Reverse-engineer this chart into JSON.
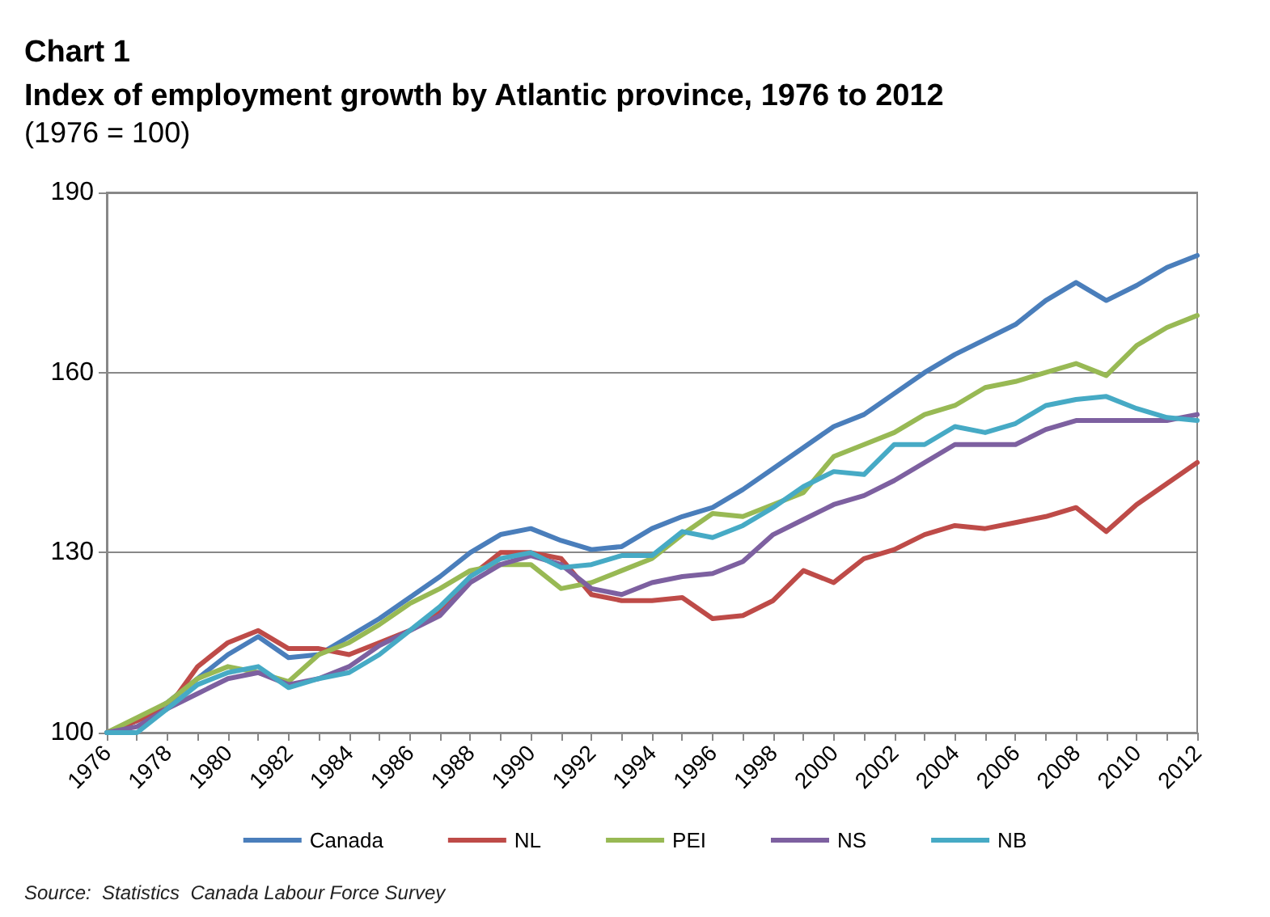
{
  "chart_data": {
    "type": "line",
    "title": "Chart 1\nIndex of employment growth by Atlantic province, 1976 to 2012",
    "subtitle": "(1976 = 100)",
    "annotations": [
      "Source:  Statistics  Canada Labour Force Survey"
    ],
    "categories": [
      "1976",
      null,
      "1978",
      null,
      "1980",
      null,
      "1982",
      null,
      "1984",
      null,
      "1986",
      null,
      "1988",
      null,
      "1990",
      null,
      "1992",
      null,
      "1994",
      null,
      "1996",
      null,
      "1998",
      null,
      "2000",
      null,
      "2002",
      null,
      "2004",
      null,
      "2006",
      null,
      "2008",
      null,
      "2010",
      null,
      "2012"
    ],
    "series": [
      {
        "name": "Canada",
        "color": "#4a7ebb",
        "values": [
          100,
          102,
          105,
          109,
          113,
          116,
          112.5,
          113,
          116,
          119,
          122.5,
          126,
          130,
          133,
          134,
          132,
          130.5,
          131,
          134,
          136,
          137.5,
          140.5,
          144,
          147.5,
          151,
          153,
          156.5,
          160,
          163,
          165.5,
          168,
          172,
          175,
          172,
          174.5,
          177.5,
          179.5
        ]
      },
      {
        "name": "NL",
        "color": "#be4b48",
        "values": [
          100,
          102,
          104,
          111,
          115,
          117,
          114,
          114,
          113,
          115,
          117,
          120,
          126,
          130,
          130,
          129,
          123,
          122,
          122,
          122.5,
          119,
          119.5,
          122,
          127,
          125,
          129,
          130.5,
          133,
          134.5,
          134,
          135,
          136,
          137.5,
          133.5,
          138,
          141.5,
          145
        ]
      },
      {
        "name": "PEI",
        "color": "#98b954",
        "values": [
          100,
          102.5,
          105,
          109,
          111,
          110,
          108.5,
          113,
          115,
          118,
          121.5,
          124,
          127,
          128,
          128,
          124,
          125,
          127,
          129,
          133,
          136.5,
          136,
          138,
          140,
          146,
          148,
          150,
          153,
          154.5,
          157.5,
          158.5,
          160,
          161.5,
          159.5,
          164.5,
          167.5,
          169.5
        ]
      },
      {
        "name": "NS",
        "color": "#7d60a0",
        "values": [
          100,
          101,
          104,
          106.5,
          109,
          110,
          108,
          109,
          111,
          114.5,
          117,
          119.5,
          125,
          128,
          129.5,
          128,
          124,
          123,
          125,
          126,
          126.5,
          128.5,
          133,
          135.5,
          138,
          139.5,
          142,
          145,
          148,
          148,
          148,
          150.5,
          152,
          152,
          152,
          152,
          153
        ]
      },
      {
        "name": "NB",
        "color": "#46aac5",
        "values": [
          100,
          100,
          104,
          108,
          110,
          111,
          107.5,
          109,
          110,
          113,
          117,
          121,
          126,
          129,
          130,
          127.5,
          128,
          129.5,
          129.5,
          133.5,
          132.5,
          134.5,
          137.5,
          141,
          143.5,
          143,
          148,
          148,
          151,
          150,
          151.5,
          154.5,
          155.5,
          156,
          154,
          152.5,
          152
        ]
      }
    ],
    "ylim": [
      100,
      190
    ],
    "yticks": [
      100,
      130,
      160,
      190
    ],
    "grid": "y",
    "legend": "bottom",
    "marker": "none",
    "line_style": "solid"
  }
}
